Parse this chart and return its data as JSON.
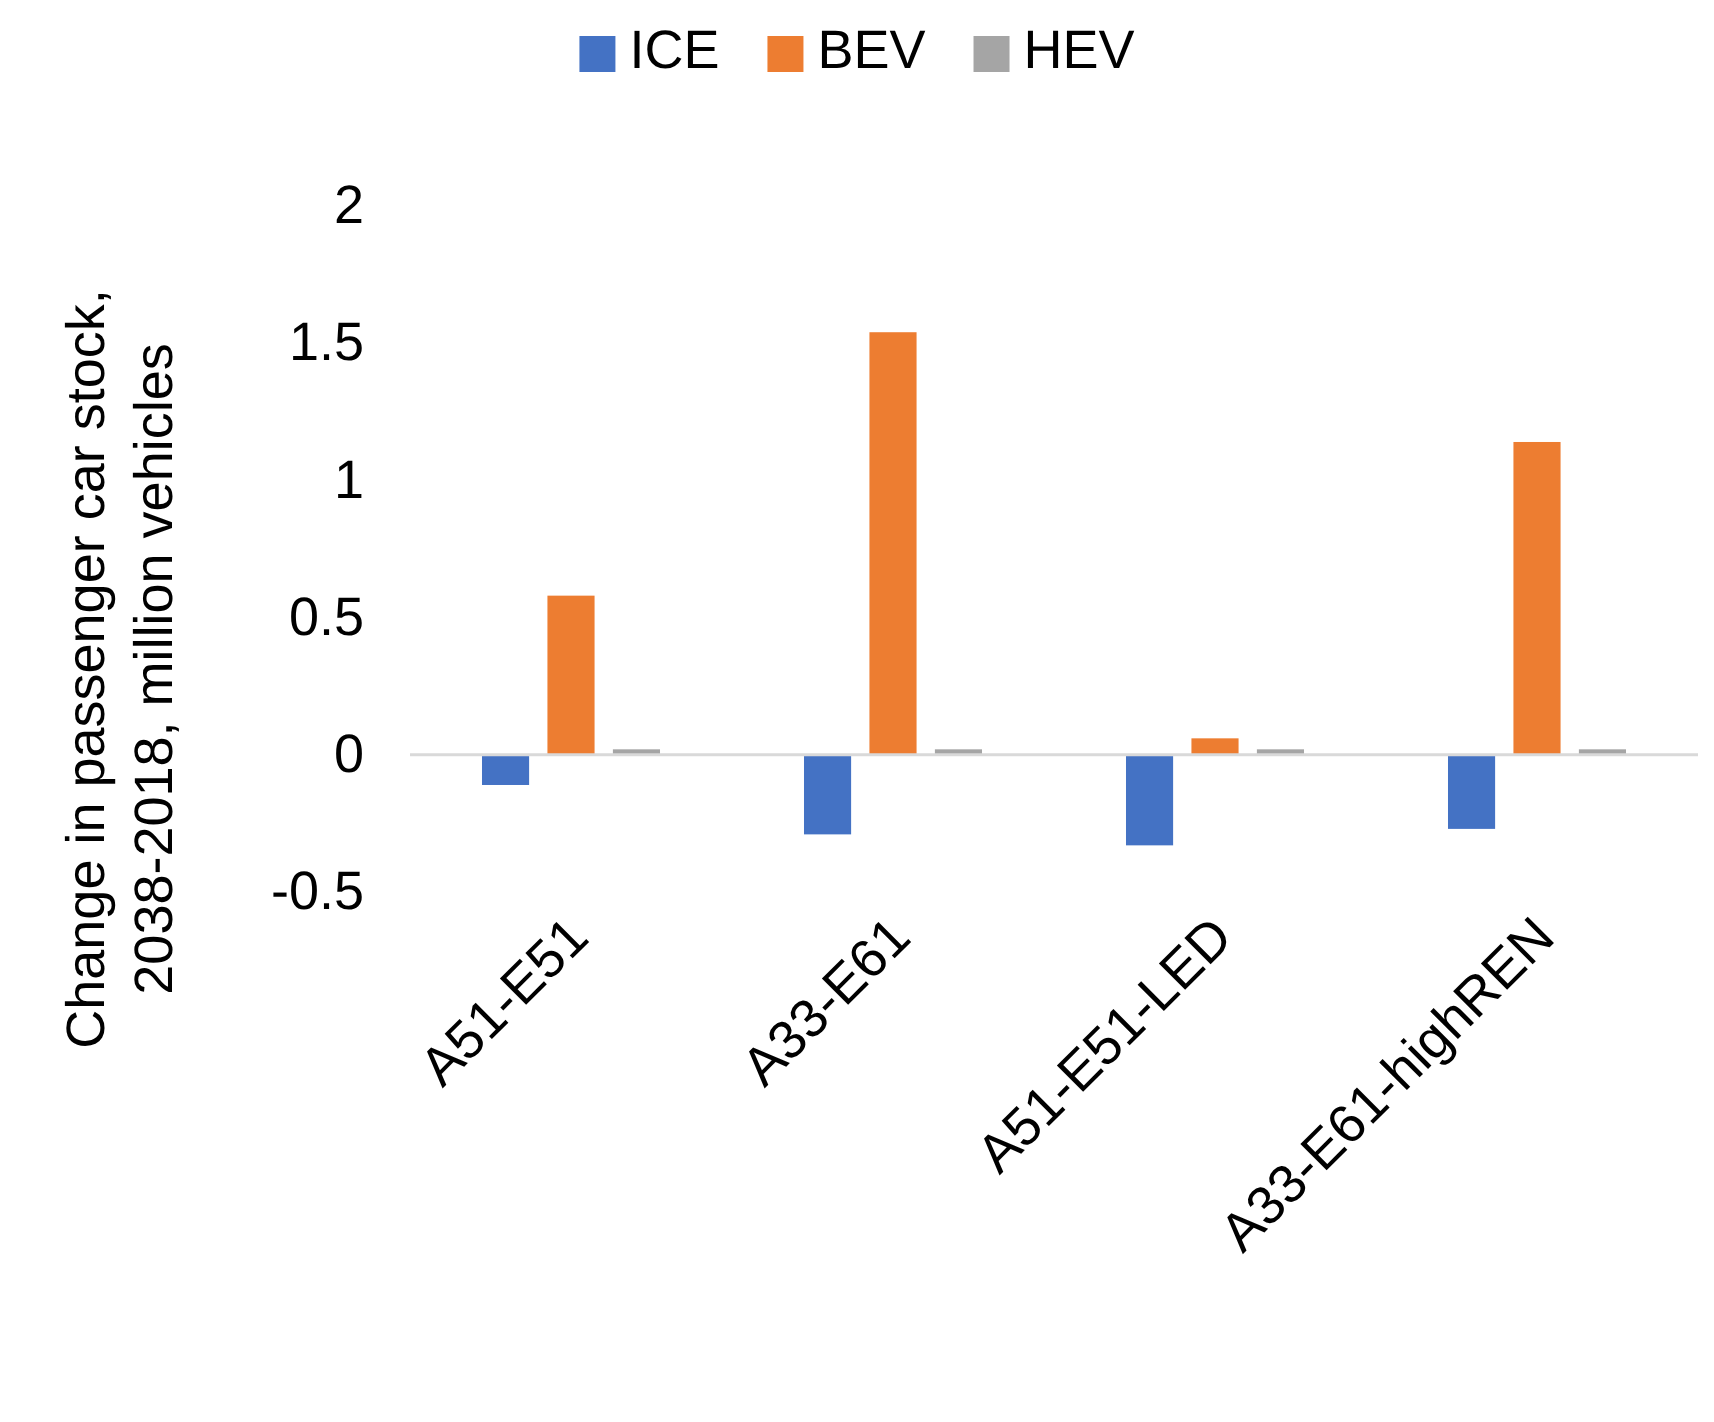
{
  "chart_data": {
    "type": "bar",
    "ylabel": "Change in passenger car stock, 2038-2018, million vehicles",
    "categories": [
      "A51-E51",
      "A33-E61",
      "A51-E51-LED",
      "A33-E61-highREN"
    ],
    "series": [
      {
        "name": "ICE",
        "color": "#4472c4",
        "values": [
          -0.11,
          -0.29,
          -0.33,
          -0.27
        ]
      },
      {
        "name": "BEV",
        "color": "#ed7d31",
        "values": [
          0.58,
          1.54,
          0.06,
          1.14
        ]
      },
      {
        "name": "HEV",
        "color": "#a5a5a5",
        "values": [
          0.02,
          0.02,
          0.02,
          0.02
        ]
      }
    ],
    "ylim": [
      -0.5,
      2
    ],
    "yticks": [
      -0.5,
      0,
      0.5,
      1,
      1.5,
      2
    ],
    "legend": "top"
  }
}
